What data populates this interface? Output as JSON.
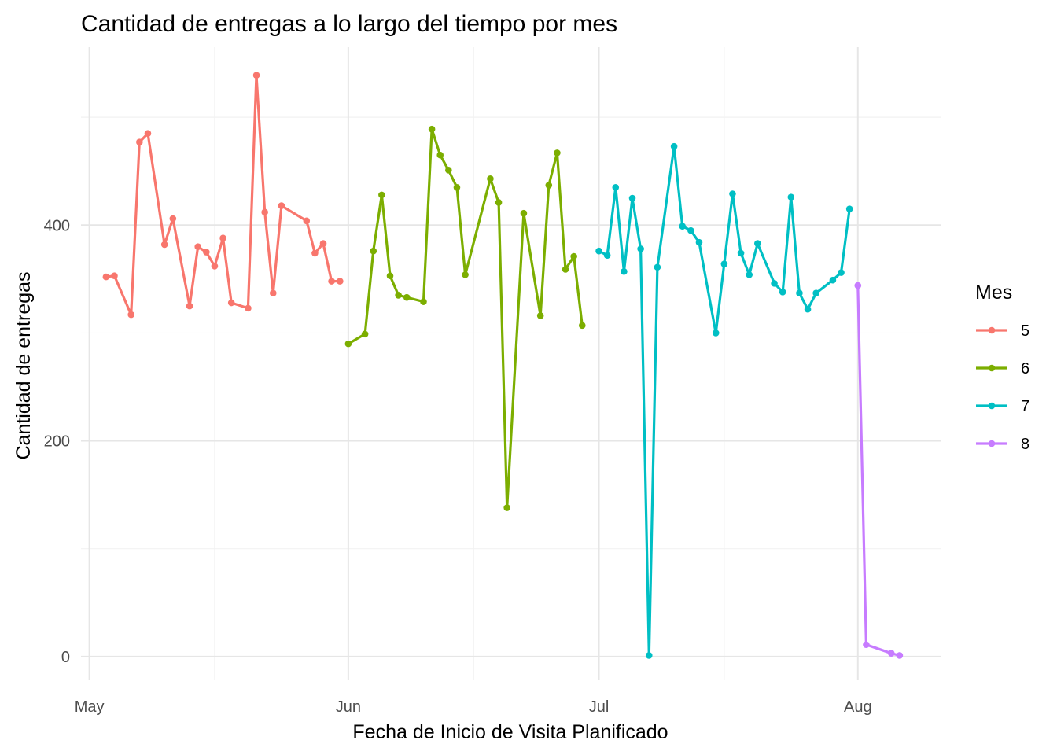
{
  "chart_data": {
    "type": "line",
    "title": "Cantidad de entregas a lo largo del tiempo por mes",
    "xlabel": "Fecha de Inicio de Visita Planificado",
    "ylabel": "Cantidad de entregas",
    "x_ticks": [
      {
        "date": "2024-05-01",
        "label": "May"
      },
      {
        "date": "2024-06-01",
        "label": "Jun"
      },
      {
        "date": "2024-07-01",
        "label": "Jul"
      },
      {
        "date": "2024-08-01",
        "label": "Aug"
      }
    ],
    "x_minor_ticks": [
      "2024-05-16",
      "2024-06-16",
      "2024-07-16"
    ],
    "xlim": [
      "2024-04-30",
      "2024-08-11"
    ],
    "y_ticks": [
      0,
      200,
      400
    ],
    "y_minor_ticks": [
      100,
      300,
      500
    ],
    "ylim": [
      -22,
      565
    ],
    "grid": true,
    "legend": {
      "title": "Mes",
      "position": "right"
    },
    "series": [
      {
        "name": "5",
        "color": "#F8766D",
        "points": [
          [
            "2024-05-03",
            352
          ],
          [
            "2024-05-04",
            353
          ],
          [
            "2024-05-06",
            317
          ],
          [
            "2024-05-07",
            477
          ],
          [
            "2024-05-08",
            485
          ],
          [
            "2024-05-10",
            382
          ],
          [
            "2024-05-11",
            406
          ],
          [
            "2024-05-13",
            325
          ],
          [
            "2024-05-14",
            380
          ],
          [
            "2024-05-15",
            375
          ],
          [
            "2024-05-16",
            362
          ],
          [
            "2024-05-17",
            388
          ],
          [
            "2024-05-18",
            328
          ],
          [
            "2024-05-20",
            323
          ],
          [
            "2024-05-21",
            539
          ],
          [
            "2024-05-22",
            412
          ],
          [
            "2024-05-23",
            337
          ],
          [
            "2024-05-24",
            418
          ],
          [
            "2024-05-27",
            404
          ],
          [
            "2024-05-28",
            374
          ],
          [
            "2024-05-29",
            383
          ],
          [
            "2024-05-30",
            348
          ],
          [
            "2024-05-31",
            348
          ]
        ]
      },
      {
        "name": "6",
        "color": "#7CAE00",
        "points": [
          [
            "2024-06-01",
            290
          ],
          [
            "2024-06-03",
            299
          ],
          [
            "2024-06-04",
            376
          ],
          [
            "2024-06-05",
            428
          ],
          [
            "2024-06-06",
            353
          ],
          [
            "2024-06-07",
            335
          ],
          [
            "2024-06-08",
            333
          ],
          [
            "2024-06-10",
            329
          ],
          [
            "2024-06-11",
            489
          ],
          [
            "2024-06-12",
            465
          ],
          [
            "2024-06-13",
            451
          ],
          [
            "2024-06-14",
            435
          ],
          [
            "2024-06-15",
            354
          ],
          [
            "2024-06-18",
            443
          ],
          [
            "2024-06-19",
            421
          ],
          [
            "2024-06-20",
            138
          ],
          [
            "2024-06-22",
            411
          ],
          [
            "2024-06-24",
            316
          ],
          [
            "2024-06-25",
            437
          ],
          [
            "2024-06-26",
            467
          ],
          [
            "2024-06-27",
            359
          ],
          [
            "2024-06-28",
            371
          ],
          [
            "2024-06-29",
            307
          ]
        ]
      },
      {
        "name": "7",
        "color": "#00BFC4",
        "points": [
          [
            "2024-07-01",
            376
          ],
          [
            "2024-07-02",
            372
          ],
          [
            "2024-07-03",
            435
          ],
          [
            "2024-07-04",
            357
          ],
          [
            "2024-07-05",
            425
          ],
          [
            "2024-07-06",
            378
          ],
          [
            "2024-07-07",
            1
          ],
          [
            "2024-07-08",
            361
          ],
          [
            "2024-07-10",
            473
          ],
          [
            "2024-07-11",
            399
          ],
          [
            "2024-07-12",
            395
          ],
          [
            "2024-07-13",
            384
          ],
          [
            "2024-07-15",
            300
          ],
          [
            "2024-07-16",
            364
          ],
          [
            "2024-07-17",
            429
          ],
          [
            "2024-07-18",
            374
          ],
          [
            "2024-07-19",
            354
          ],
          [
            "2024-07-20",
            383
          ],
          [
            "2024-07-22",
            346
          ],
          [
            "2024-07-23",
            338
          ],
          [
            "2024-07-24",
            426
          ],
          [
            "2024-07-25",
            337
          ],
          [
            "2024-07-26",
            322
          ],
          [
            "2024-07-27",
            337
          ],
          [
            "2024-07-29",
            349
          ],
          [
            "2024-07-30",
            356
          ],
          [
            "2024-07-31",
            415
          ]
        ]
      },
      {
        "name": "8",
        "color": "#C77CFF",
        "points": [
          [
            "2024-08-01",
            344
          ],
          [
            "2024-08-02",
            11
          ],
          [
            "2024-08-05",
            3
          ],
          [
            "2024-08-06",
            1
          ]
        ]
      }
    ]
  }
}
